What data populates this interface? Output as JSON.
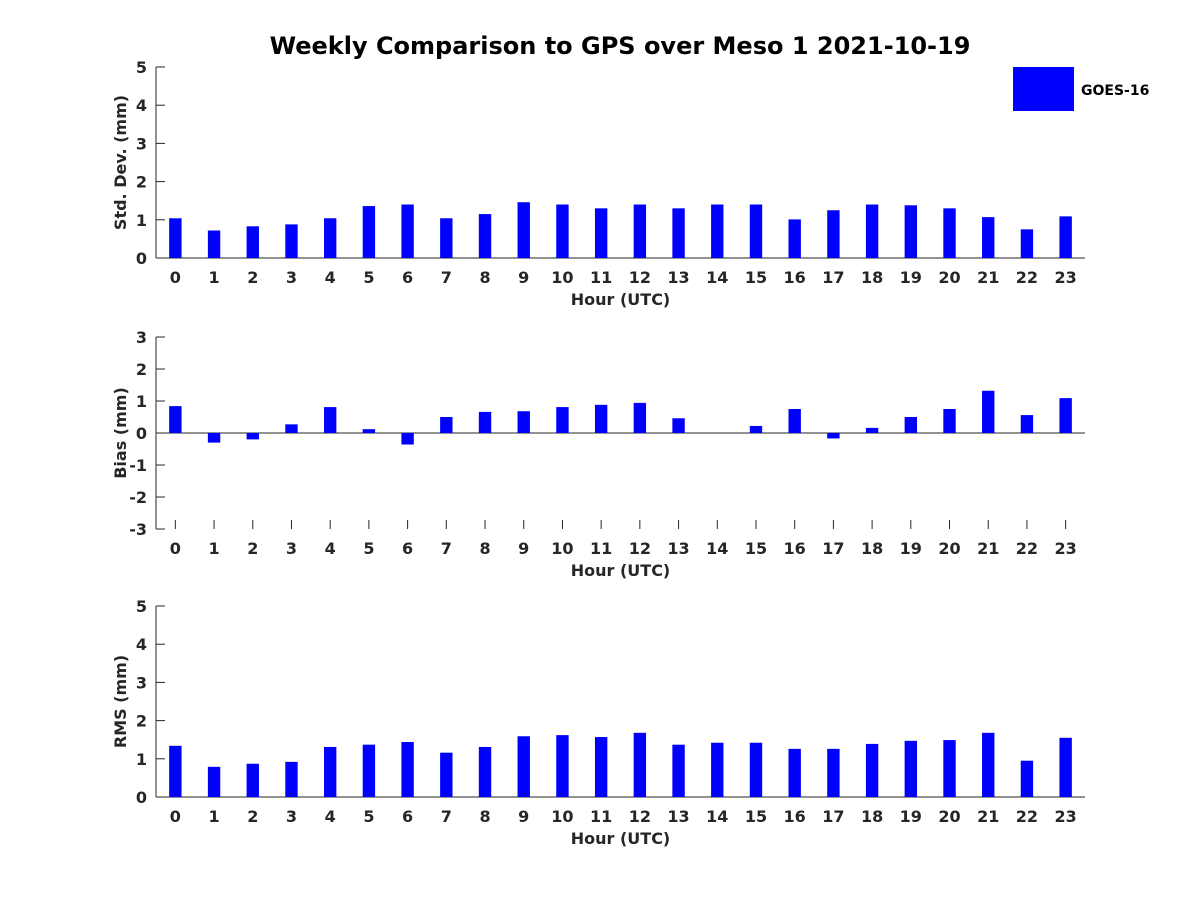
{
  "chart_data": [
    {
      "type": "bar",
      "title": "Weekly Comparison to GPS over Meso 1 2021-10-19",
      "xlabel": "Hour (UTC)",
      "ylabel": "Std. Dev. (mm)",
      "ylim": [
        0,
        5
      ],
      "yticks": [
        0,
        1,
        2,
        3,
        4,
        5
      ],
      "categories": [
        "0",
        "1",
        "2",
        "3",
        "4",
        "5",
        "6",
        "7",
        "8",
        "9",
        "10",
        "11",
        "12",
        "13",
        "14",
        "15",
        "16",
        "17",
        "18",
        "19",
        "20",
        "21",
        "22",
        "23"
      ],
      "series": [
        {
          "name": "GOES-16",
          "values": [
            1.04,
            0.72,
            0.83,
            0.88,
            1.04,
            1.36,
            1.4,
            1.04,
            1.15,
            1.46,
            1.4,
            1.3,
            1.4,
            1.3,
            1.4,
            1.4,
            1.01,
            1.25,
            1.4,
            1.38,
            1.3,
            1.07,
            0.75,
            1.09
          ]
        }
      ],
      "legend": {
        "entries": [
          "GOES-16"
        ],
        "location": "top-right"
      }
    },
    {
      "type": "bar",
      "xlabel": "Hour (UTC)",
      "ylabel": "Bias (mm)",
      "ylim": [
        -3,
        3
      ],
      "yticks": [
        -3,
        -2,
        -1,
        0,
        1,
        2,
        3
      ],
      "categories": [
        "0",
        "1",
        "2",
        "3",
        "4",
        "5",
        "6",
        "7",
        "8",
        "9",
        "10",
        "11",
        "12",
        "13",
        "14",
        "15",
        "16",
        "17",
        "18",
        "19",
        "20",
        "21",
        "22",
        "23"
      ],
      "series": [
        {
          "name": "GOES-16",
          "values": [
            0.84,
            -0.3,
            -0.2,
            0.27,
            0.81,
            0.12,
            -0.36,
            0.5,
            0.66,
            0.68,
            0.81,
            0.88,
            0.94,
            0.46,
            0.0,
            0.22,
            0.75,
            -0.17,
            0.16,
            0.5,
            0.75,
            1.32,
            0.56,
            1.09
          ]
        }
      ]
    },
    {
      "type": "bar",
      "xlabel": "Hour (UTC)",
      "ylabel": "RMS (mm)",
      "ylim": [
        0,
        5
      ],
      "yticks": [
        0,
        1,
        2,
        3,
        4,
        5
      ],
      "categories": [
        "0",
        "1",
        "2",
        "3",
        "4",
        "5",
        "6",
        "7",
        "8",
        "9",
        "10",
        "11",
        "12",
        "13",
        "14",
        "15",
        "16",
        "17",
        "18",
        "19",
        "20",
        "21",
        "22",
        "23"
      ],
      "series": [
        {
          "name": "GOES-16",
          "values": [
            1.34,
            0.79,
            0.87,
            0.92,
            1.31,
            1.37,
            1.44,
            1.16,
            1.31,
            1.59,
            1.62,
            1.57,
            1.68,
            1.37,
            1.42,
            1.42,
            1.26,
            1.26,
            1.39,
            1.47,
            1.49,
            1.68,
            0.95,
            1.55
          ]
        }
      ]
    }
  ],
  "colors": {
    "bar": "#0000ff",
    "axis": "#262626",
    "title": "#000000"
  }
}
